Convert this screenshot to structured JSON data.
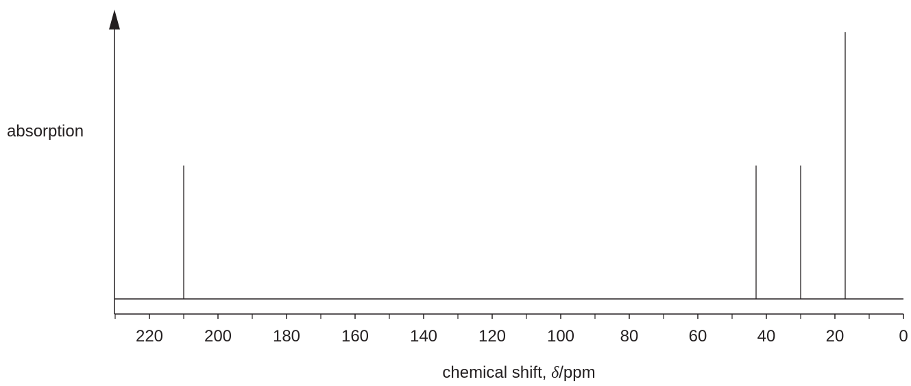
{
  "chart_data": {
    "type": "bar",
    "title": "",
    "xlabel_prefix": "chemical shift, ",
    "xlabel_symbol": "δ",
    "xlabel_suffix": "/ppm",
    "ylabel": "absorption",
    "x_reversed": true,
    "xlim": [
      232,
      0
    ],
    "x_ticks_major": [
      220,
      200,
      180,
      160,
      140,
      120,
      100,
      80,
      60,
      40,
      20,
      0
    ],
    "x_ticks_minor": [
      230,
      210,
      190,
      170,
      150,
      130,
      110,
      90,
      70,
      50,
      30,
      10
    ],
    "grid": false,
    "peaks": [
      {
        "shift": 210,
        "relative_height": 0.5
      },
      {
        "shift": 43,
        "relative_height": 0.5
      },
      {
        "shift": 30,
        "relative_height": 0.5
      },
      {
        "shift": 17,
        "relative_height": 1.0
      }
    ],
    "colors": {
      "line": "#231f20",
      "text": "#231f20"
    }
  }
}
